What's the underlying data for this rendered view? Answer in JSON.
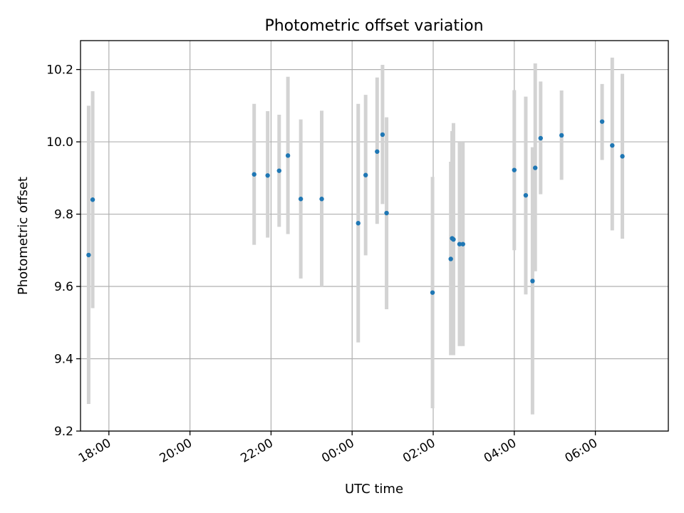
{
  "chart_data": {
    "type": "scatter",
    "title": "Photometric offset variation",
    "xlabel": "UTC time",
    "ylabel": "Photometric offset",
    "x_ticks": [
      "18:00",
      "20:00",
      "22:00",
      "00:00",
      "02:00",
      "04:00",
      "06:00"
    ],
    "y_ticks": [
      "9.2",
      "9.4",
      "9.6",
      "9.8",
      "10.0",
      "10.2"
    ],
    "ylim": [
      9.2,
      10.28
    ],
    "xlim": [
      "17:18",
      "07:48"
    ],
    "grid": true,
    "marker_color": "#1f77b4",
    "errorbar_color": "#d3d3d3",
    "points": [
      {
        "t": "17:30",
        "y": 9.687,
        "lo": 9.275,
        "hi": 10.1
      },
      {
        "t": "17:36",
        "y": 9.84,
        "lo": 9.54,
        "hi": 10.14
      },
      {
        "t": "21:35",
        "y": 9.91,
        "lo": 9.715,
        "hi": 10.105
      },
      {
        "t": "21:55",
        "y": 9.907,
        "lo": 9.735,
        "hi": 10.085
      },
      {
        "t": "22:12",
        "y": 9.92,
        "lo": 9.765,
        "hi": 10.075
      },
      {
        "t": "22:25",
        "y": 9.962,
        "lo": 9.745,
        "hi": 10.18
      },
      {
        "t": "22:44",
        "y": 9.842,
        "lo": 9.622,
        "hi": 10.062
      },
      {
        "t": "23:15",
        "y": 9.842,
        "lo": 9.598,
        "hi": 10.086
      },
      {
        "t": "00:09",
        "y": 9.775,
        "lo": 9.445,
        "hi": 10.105
      },
      {
        "t": "00:20",
        "y": 9.908,
        "lo": 9.686,
        "hi": 10.13
      },
      {
        "t": "00:37",
        "y": 9.973,
        "lo": 9.773,
        "hi": 10.178
      },
      {
        "t": "00:45",
        "y": 10.02,
        "lo": 9.828,
        "hi": 10.213
      },
      {
        "t": "00:51",
        "y": 9.803,
        "lo": 9.537,
        "hi": 10.068
      },
      {
        "t": "01:59",
        "y": 9.583,
        "lo": 9.263,
        "hi": 9.903
      },
      {
        "t": "02:26",
        "y": 9.676,
        "lo": 9.41,
        "hi": 9.945
      },
      {
        "t": "02:28",
        "y": 9.733,
        "lo": 9.43,
        "hi": 10.03
      },
      {
        "t": "02:30",
        "y": 9.73,
        "lo": 9.41,
        "hi": 10.052
      },
      {
        "t": "02:39",
        "y": 9.717,
        "lo": 9.435,
        "hi": 10.0
      },
      {
        "t": "02:44",
        "y": 9.717,
        "lo": 9.435,
        "hi": 10.0
      },
      {
        "t": "04:00",
        "y": 9.922,
        "lo": 9.7,
        "hi": 10.143
      },
      {
        "t": "04:17",
        "y": 9.852,
        "lo": 9.578,
        "hi": 10.125
      },
      {
        "t": "04:27",
        "y": 9.615,
        "lo": 9.246,
        "hi": 9.985
      },
      {
        "t": "04:31",
        "y": 9.928,
        "lo": 9.642,
        "hi": 10.217
      },
      {
        "t": "04:39",
        "y": 10.01,
        "lo": 9.855,
        "hi": 10.167
      },
      {
        "t": "05:10",
        "y": 10.018,
        "lo": 9.895,
        "hi": 10.142
      },
      {
        "t": "06:10",
        "y": 10.056,
        "lo": 9.95,
        "hi": 10.16
      },
      {
        "t": "06:25",
        "y": 9.99,
        "lo": 9.755,
        "hi": 10.233
      },
      {
        "t": "06:40",
        "y": 9.96,
        "lo": 9.732,
        "hi": 10.188
      }
    ]
  }
}
